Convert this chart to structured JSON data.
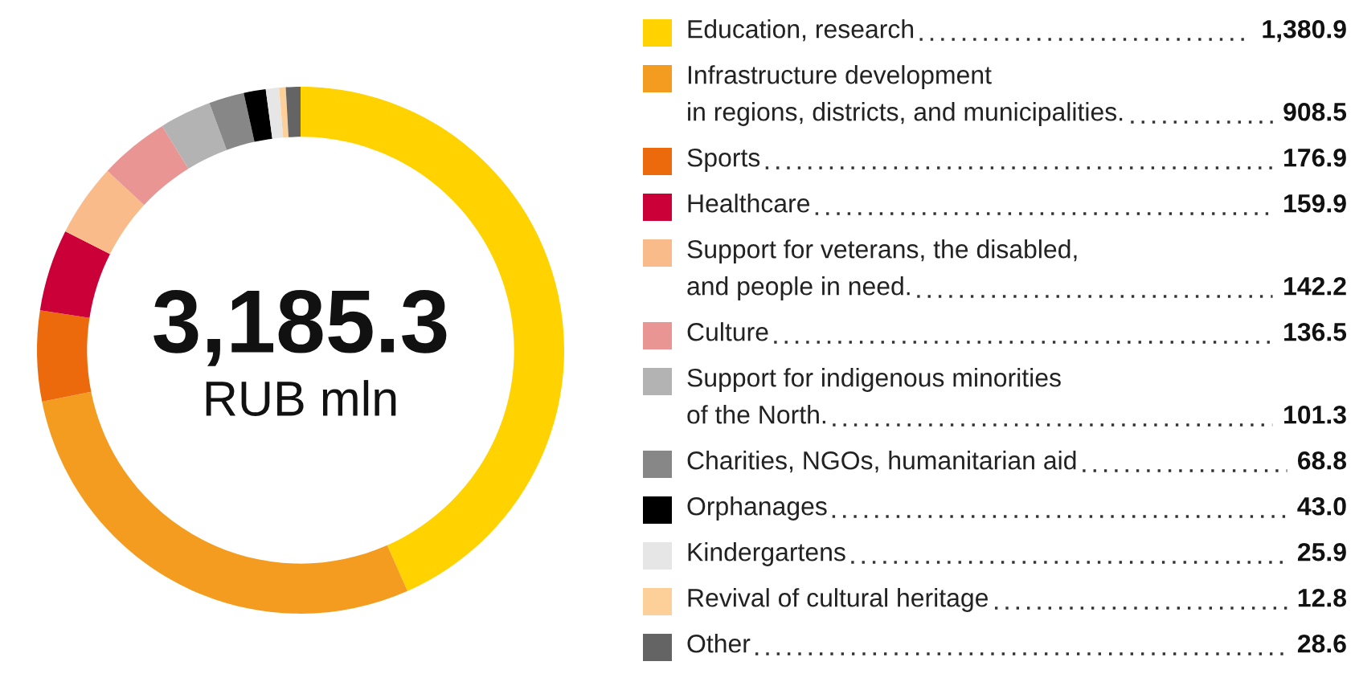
{
  "chart_data": {
    "type": "donut",
    "title": "3,185.3",
    "subtitle": "RUB mln",
    "legend": "right",
    "categories": [
      "Education, research",
      "Infrastructure development\nin regions, districts, and municipalities.",
      "Sports",
      "Healthcare",
      "Support for veterans, the disabled,\nand people in need.",
      "Culture",
      "Support for indigenous minorities\nof the North.",
      "Charities, NGOs, humanitarian aid",
      "Orphanages",
      "Kindergartens",
      "Revival of cultural heritage",
      "Other"
    ],
    "values": [
      1380.9,
      908.5,
      176.9,
      159.9,
      142.2,
      136.5,
      101.3,
      68.8,
      43.0,
      25.9,
      12.8,
      28.6
    ],
    "value_labels": [
      "1,380.9",
      "908.5",
      "176.9",
      "159.9",
      "142.2",
      "136.5",
      "101.3",
      "68.8",
      "43.0",
      "25.9",
      "12.8",
      "28.6"
    ],
    "colors": [
      "#ffd200",
      "#f39c1f",
      "#ec6a0c",
      "#cc0038",
      "#f9bb8a",
      "#e89593",
      "#b3b3b3",
      "#878787",
      "#000000",
      "#e6e6e6",
      "#fdd09a",
      "#646464"
    ]
  }
}
